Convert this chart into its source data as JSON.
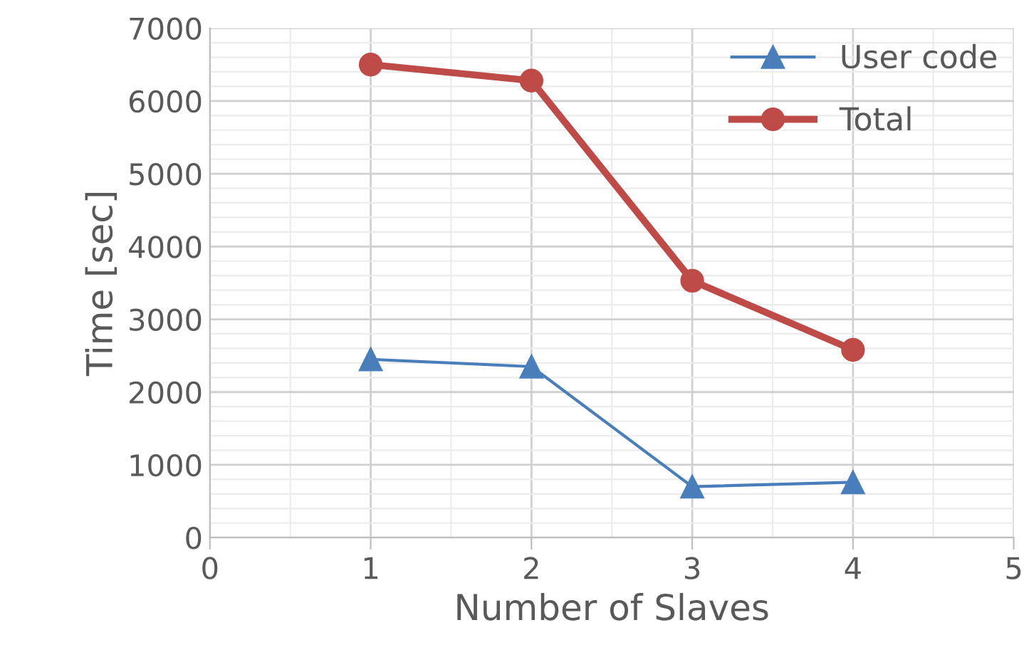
{
  "chart_data": {
    "type": "line",
    "xlabel": "Number of Slaves",
    "ylabel": "Time [sec]",
    "x": [
      1,
      2,
      3,
      4
    ],
    "series": [
      {
        "name": "User code",
        "color": "#4a7ebb",
        "values": [
          2450,
          2350,
          700,
          760
        ],
        "marker": "triangle"
      },
      {
        "name": "Total",
        "color": "#be4b48",
        "values": [
          6500,
          6280,
          3530,
          2580
        ],
        "marker": "circle"
      }
    ],
    "xlim": [
      0,
      5
    ],
    "xticks": [
      0,
      1,
      2,
      3,
      4,
      5
    ],
    "ylim": [
      0,
      7000
    ],
    "yticks": [
      0,
      1000,
      2000,
      3000,
      4000,
      5000,
      6000,
      7000
    ],
    "grid": true,
    "legend": "top right",
    "line_style": "solid"
  }
}
